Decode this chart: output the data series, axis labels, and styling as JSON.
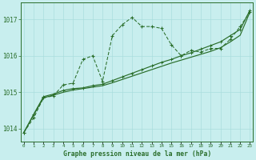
{
  "title": "Graphe pression niveau de la mer (hPa)",
  "ylabel_ticks": [
    1014,
    1015,
    1016,
    1017
  ],
  "xlim": [
    -0.3,
    23.3
  ],
  "ylim": [
    1013.65,
    1017.45
  ],
  "background_color": "#c8eeee",
  "grid_color": "#aadddd",
  "line_color": "#2a6e2a",
  "hours": [
    0,
    1,
    2,
    3,
    4,
    5,
    6,
    7,
    8,
    9,
    10,
    11,
    12,
    13,
    14,
    15,
    16,
    17,
    18,
    19,
    20,
    21,
    22,
    23
  ],
  "series1": [
    1013.9,
    1014.3,
    1014.85,
    1014.9,
    1015.2,
    1015.25,
    1015.9,
    1016.0,
    1015.3,
    1016.55,
    1016.85,
    1017.05,
    1016.8,
    1016.8,
    1016.75,
    1016.3,
    1016.0,
    1016.15,
    1016.1,
    1016.2,
    1016.2,
    1016.45,
    1016.8,
    1017.2
  ],
  "series2": [
    1013.9,
    1014.4,
    1014.88,
    1014.95,
    1015.05,
    1015.1,
    1015.12,
    1015.18,
    1015.22,
    1015.32,
    1015.42,
    1015.52,
    1015.62,
    1015.72,
    1015.82,
    1015.9,
    1016.0,
    1016.08,
    1016.18,
    1016.28,
    1016.38,
    1016.55,
    1016.72,
    1017.25
  ],
  "series3": [
    1013.9,
    1014.38,
    1014.85,
    1014.92,
    1015.0,
    1015.06,
    1015.1,
    1015.14,
    1015.18,
    1015.26,
    1015.35,
    1015.44,
    1015.53,
    1015.62,
    1015.71,
    1015.8,
    1015.88,
    1015.96,
    1016.04,
    1016.12,
    1016.22,
    1016.38,
    1016.56,
    1017.2
  ]
}
